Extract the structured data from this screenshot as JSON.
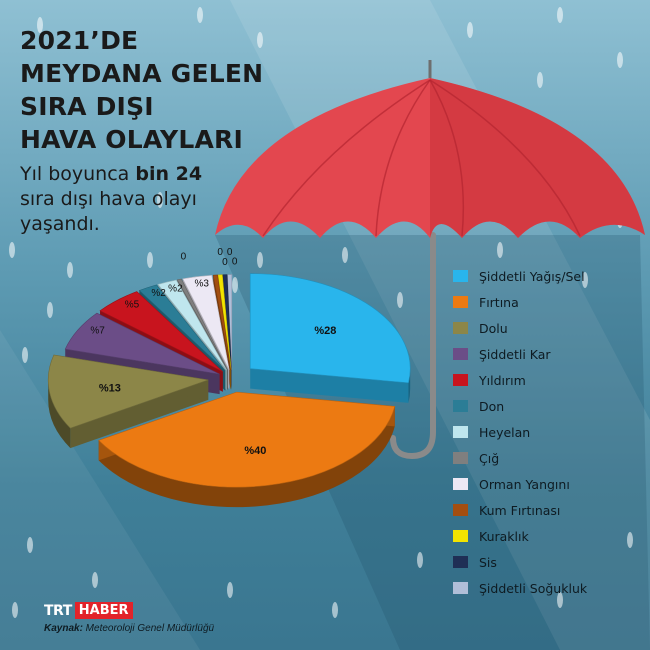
{
  "header": {
    "title_lines": [
      "2021’DE",
      "MEYDANA GELEN",
      "SIRA DIŞI",
      "HAVA OLAYLARI"
    ],
    "subtitle_line1_pre": "Yıl boyunca ",
    "subtitle_line1_bold": "bin 24",
    "subtitle_line2": "sıra dışı hava olayı",
    "subtitle_line3": "yaşandı."
  },
  "chart_data": {
    "type": "pie",
    "title": "",
    "categories": [
      "Şiddetli Yağış/Sel",
      "Fırtına",
      "Dolu",
      "Şiddetli Kar",
      "Yıldırım",
      "Don",
      "Heyelan",
      "Çığ",
      "Orman Yangını",
      "Kum Fırtınası",
      "Kuraklık",
      "Sis",
      "Şiddetli Soğukluk"
    ],
    "values": [
      28,
      40,
      13,
      7,
      5,
      2,
      2,
      0,
      3,
      0,
      0,
      0,
      0
    ],
    "value_labels": [
      "%28",
      "%40",
      "%13",
      "%7",
      "%5",
      "%2",
      "%2",
      "0",
      "%3",
      "0",
      "0",
      "0",
      "0"
    ],
    "colors": [
      "#29b5ec",
      "#ec7a12",
      "#8c8648",
      "#6b4d87",
      "#c8141e",
      "#2b7d96",
      "#bfe6ee",
      "#7f7f7f",
      "#ece8f4",
      "#a34e10",
      "#f2e400",
      "#1f2f55",
      "#b0bed8"
    ],
    "legend_position": "right"
  },
  "footer": {
    "logo_trt": "TRT",
    "logo_haber": "HABER",
    "source_label": "Kaynak:",
    "source_text": " Meteoroloji Genel Müdürlüğü"
  }
}
